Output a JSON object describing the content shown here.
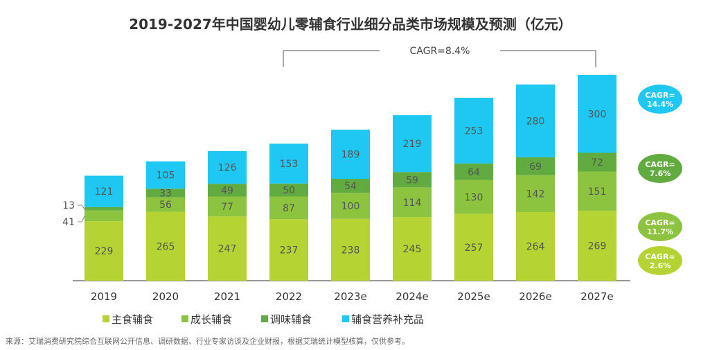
{
  "chart_data": {
    "type": "bar",
    "stacked": true,
    "title": "2019-2027年中国婴幼儿零辅食行业细分品类市场规模及预测（亿元）",
    "categories": [
      "2019",
      "2020",
      "2021",
      "2022",
      "2023e",
      "2024e",
      "2025e",
      "2026e",
      "2027e"
    ],
    "series": [
      {
        "name": "主食辅食",
        "color": "#b5d333",
        "values": [
          229,
          265,
          247,
          237,
          238,
          245,
          257,
          264,
          269
        ],
        "cagr": "CAGR=\n2.6%"
      },
      {
        "name": "成长辅食",
        "color": "#8cc440",
        "values": [
          41,
          56,
          77,
          87,
          100,
          114,
          130,
          142,
          151
        ],
        "cagr": "CAGR=\n11.7%"
      },
      {
        "name": "调味辅食",
        "color": "#62ab40",
        "values": [
          13,
          33,
          49,
          50,
          54,
          59,
          64,
          69,
          72
        ],
        "cagr": "CAGR=\n7.6%"
      },
      {
        "name": "辅食营养补充品",
        "color": "#1fc8f2",
        "values": [
          121,
          105,
          126,
          153,
          189,
          219,
          253,
          280,
          300
        ],
        "cagr": "CAGR=\n14.4%"
      }
    ],
    "overall_cagr": "CAGR=8.4%",
    "ylim": [
      0,
      800
    ],
    "grid": false,
    "legend": "bottom"
  },
  "source": "来源：艾瑞消费研究院综合互联网公开信息、调研数据、行业专家访谈及企业财报，根据艾瑞统计模型核算，仅供参考。"
}
